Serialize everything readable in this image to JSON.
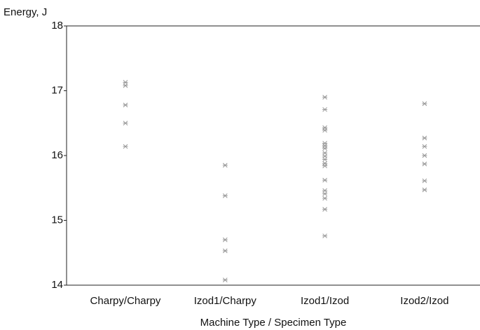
{
  "chart_data": {
    "type": "scatter",
    "y_label": "Energy, J",
    "x_label": "Machine Type / Specimen Type",
    "groups": [
      {
        "name": "Charpy/Charpy",
        "values": [
          17.13,
          17.08,
          16.78,
          16.5,
          16.14
        ]
      },
      {
        "name": "Izod1/Charpy",
        "values": [
          15.85,
          15.38,
          14.7,
          14.53,
          14.08
        ]
      },
      {
        "name": "Izod1/Izod",
        "values": [
          16.9,
          16.71,
          16.43,
          16.39,
          16.19,
          16.15,
          16.11,
          16.04,
          15.99,
          15.94,
          15.88,
          15.84,
          15.62,
          15.46,
          15.41,
          15.34,
          15.17,
          14.76
        ]
      },
      {
        "name": "Izod2/Izod",
        "values": [
          16.8,
          16.27,
          16.14,
          16.0,
          15.87,
          15.61,
          15.47
        ]
      }
    ],
    "color": "#999999",
    "ylim": [
      14,
      18
    ],
    "yticks": [
      14,
      15,
      16,
      17,
      18
    ]
  }
}
